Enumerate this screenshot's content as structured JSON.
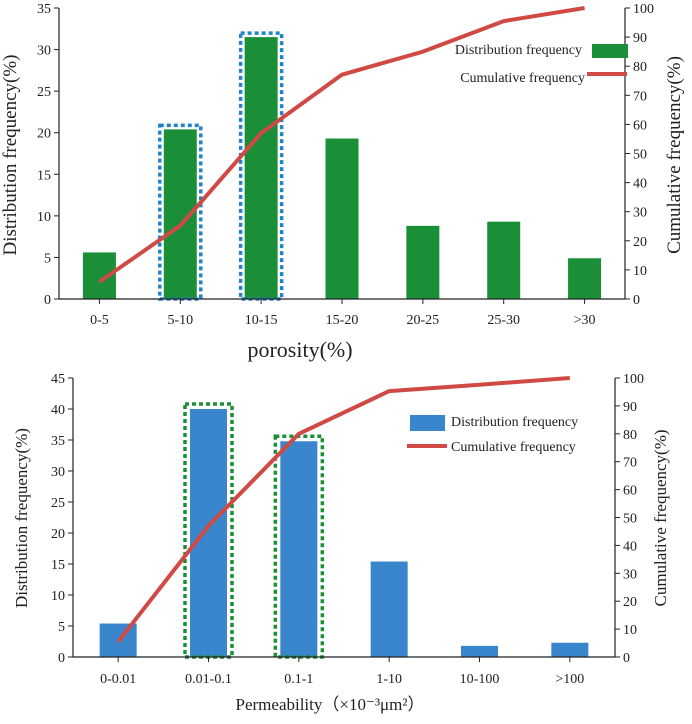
{
  "chart_data": [
    {
      "type": "bar+line",
      "categories": [
        "0-5",
        "5-10",
        "10-15",
        "15-20",
        "20-25",
        "25-30",
        ">30"
      ],
      "series": [
        {
          "name": "Distribution frequency",
          "axis": "left",
          "kind": "bar",
          "color": "#1a8f37",
          "values": [
            5.6,
            20.4,
            31.5,
            19.3,
            8.8,
            9.3,
            4.9
          ]
        },
        {
          "name": "Cumulative frequency",
          "axis": "right",
          "kind": "line",
          "color": "#d04a45",
          "values": [
            5.9,
            25.2,
            57.0,
            77.1,
            85.0,
            95.5,
            100
          ]
        }
      ],
      "highlight_categories": [
        1,
        2
      ],
      "highlight_color": "#1f84c8",
      "xlabel": "porosity(%)",
      "ylabel_left": "Distribution frequency(%)",
      "ylabel_right": "Cumulative frequency(%)",
      "ylim_left": [
        0,
        35
      ],
      "yticks_left": [
        0,
        5,
        10,
        15,
        20,
        25,
        30,
        35
      ],
      "ylim_right": [
        0,
        100
      ],
      "yticks_right": [
        0,
        10,
        20,
        30,
        40,
        50,
        60,
        70,
        80,
        90,
        100
      ],
      "legend_position": "top-right",
      "legend": [
        "Distribution frequency",
        "Cumulative frequency"
      ]
    },
    {
      "type": "bar+line",
      "categories": [
        "0-0.01",
        "0.01-0.1",
        "0.1-1",
        "1-10",
        "10-100",
        ">100"
      ],
      "series": [
        {
          "name": "Distribution frequency",
          "axis": "left",
          "kind": "bar",
          "color": "#3a86cc",
          "values": [
            5.4,
            40.0,
            34.8,
            15.4,
            1.8,
            2.3
          ]
        },
        {
          "name": "Cumulative frequency",
          "axis": "right",
          "kind": "line",
          "color": "#d04a45",
          "values": [
            5.5,
            47.0,
            80.0,
            95.3,
            97.6,
            100
          ]
        }
      ],
      "highlight_categories": [
        1,
        2
      ],
      "highlight_color": "#1a8f37",
      "xlabel": "Permeability（×10⁻³μm²）",
      "ylabel_left": "Distribution frequency(%)",
      "ylabel_right": "Cumulative frequency(%)",
      "ylim_left": [
        0,
        45
      ],
      "yticks_left": [
        0,
        5,
        10,
        15,
        20,
        25,
        30,
        35,
        40,
        45
      ],
      "ylim_right": [
        0,
        100
      ],
      "yticks_right": [
        0,
        10,
        20,
        30,
        40,
        50,
        60,
        70,
        80,
        90,
        100
      ],
      "legend_position": "top-right",
      "legend": [
        "Distribution frequency",
        "Cumulative frequency"
      ]
    }
  ]
}
